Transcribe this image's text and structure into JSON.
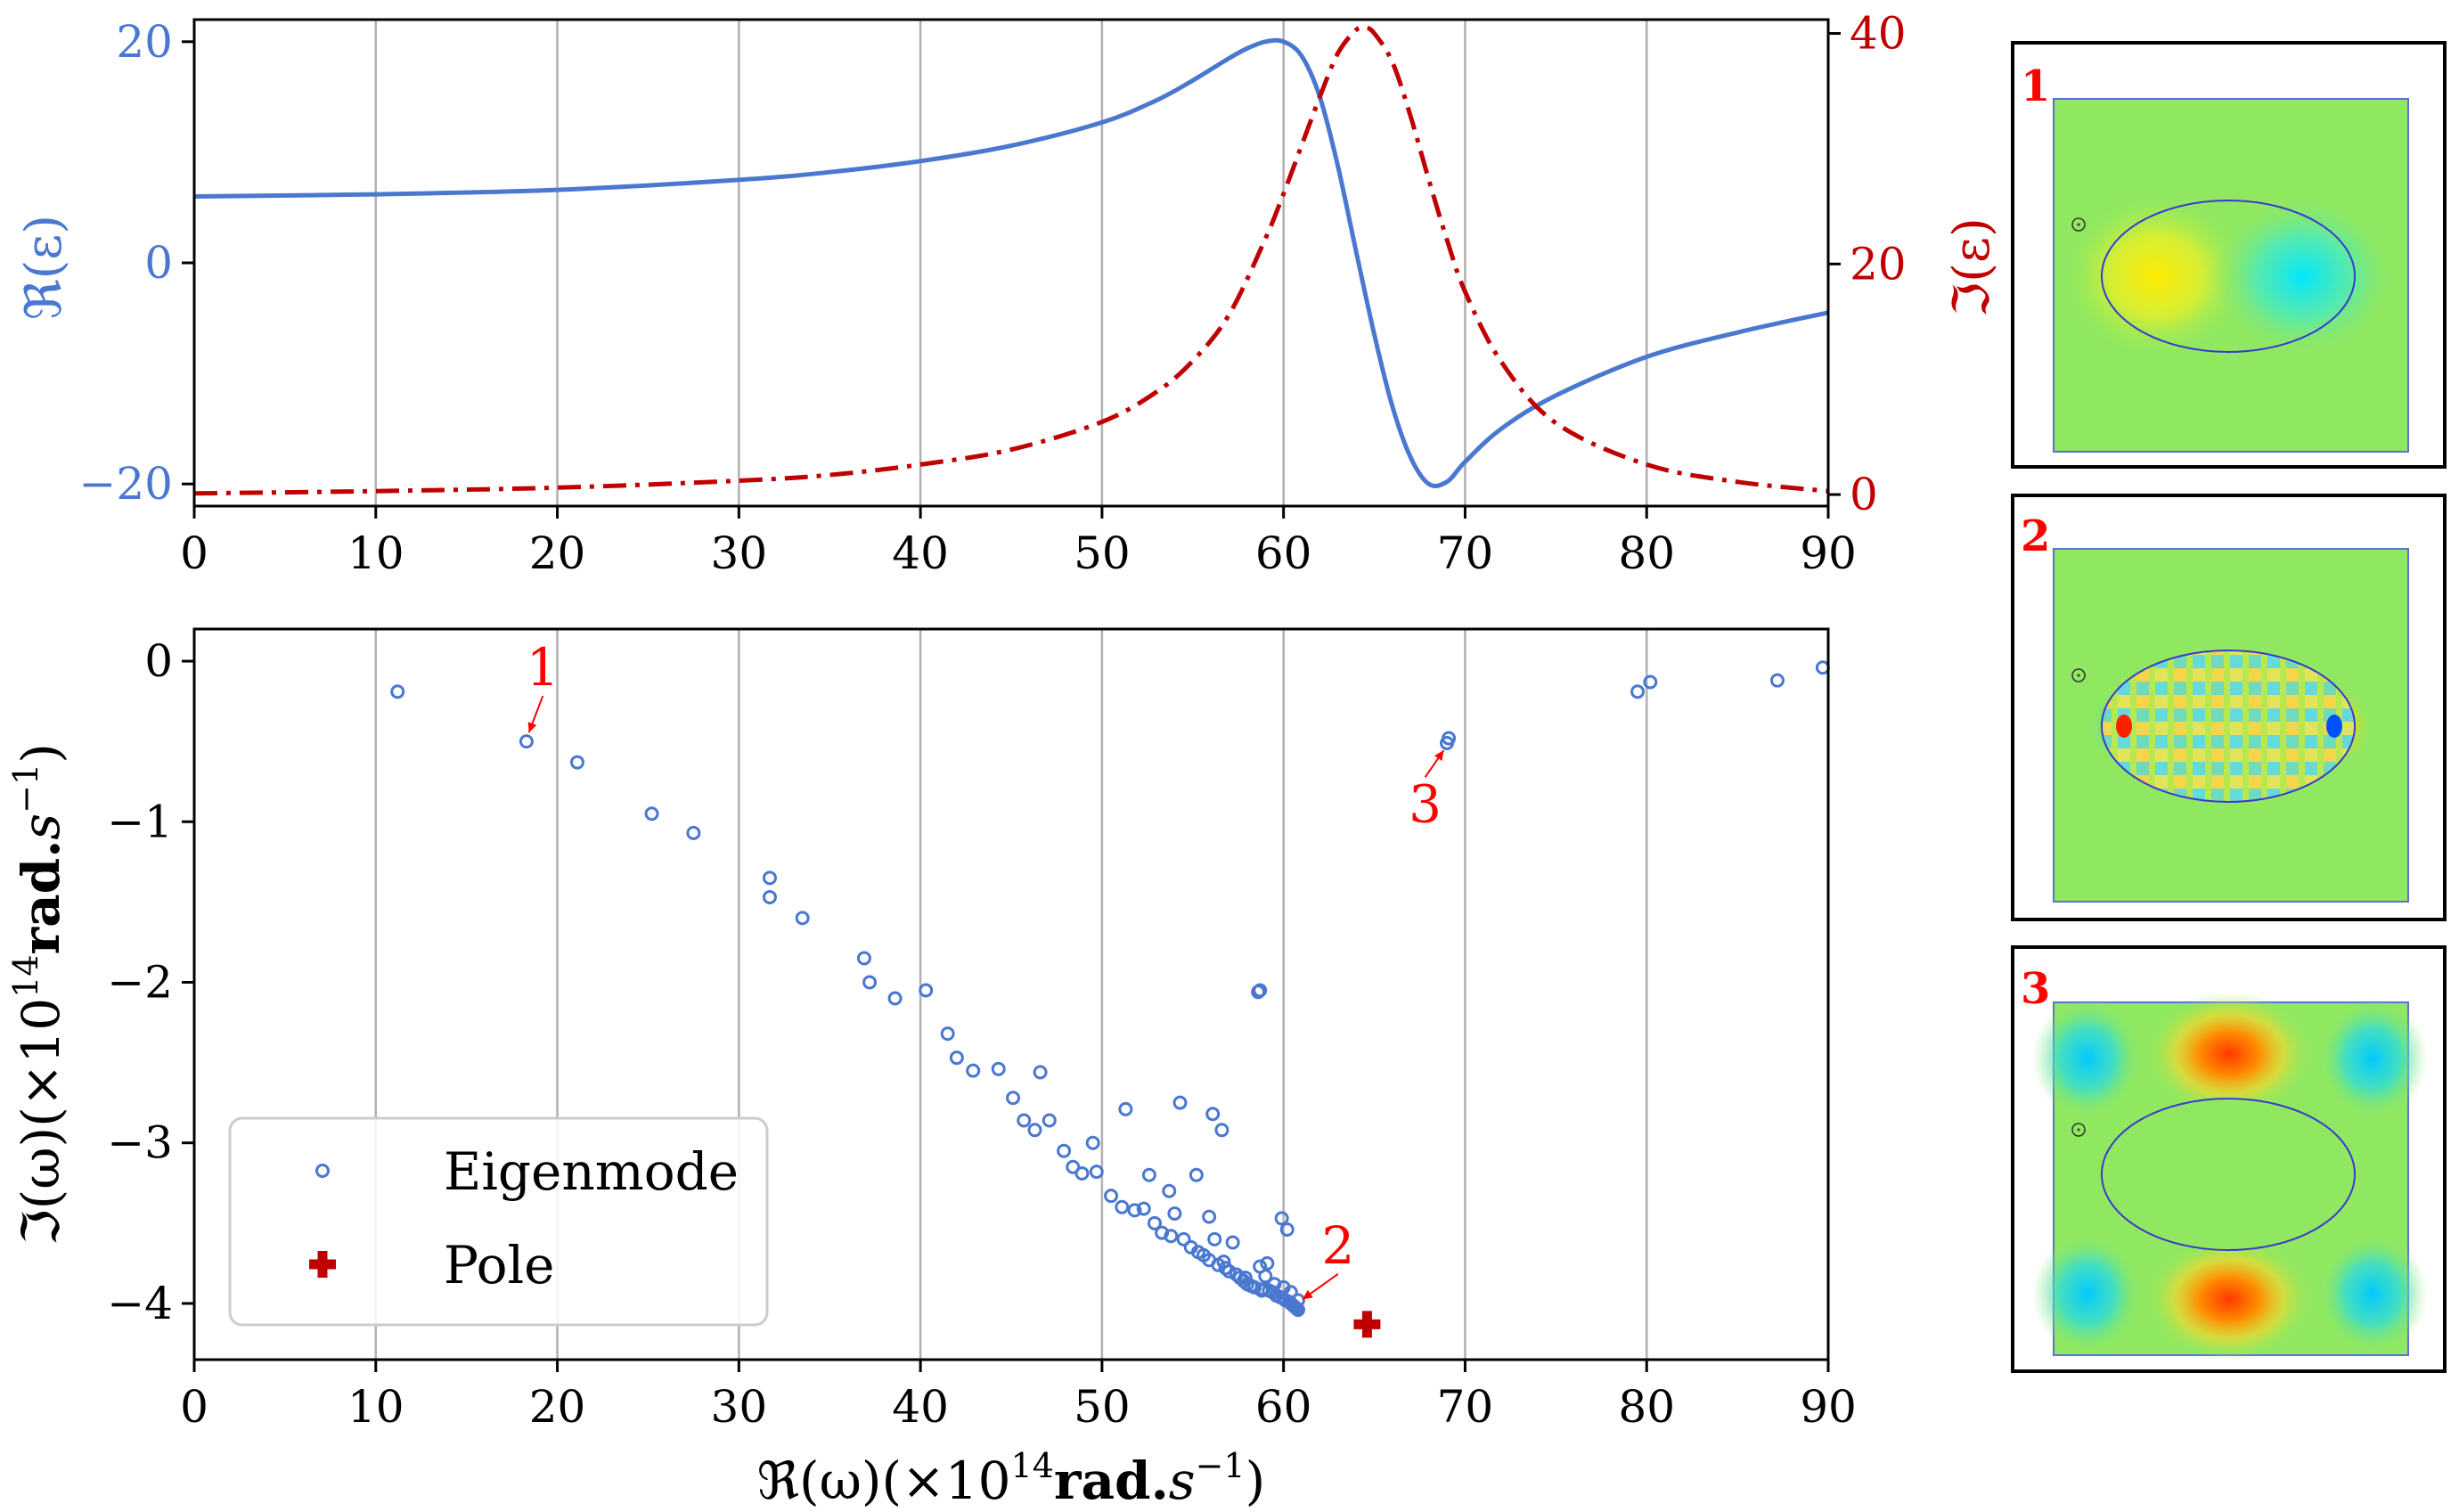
{
  "chart_data": [
    {
      "id": "permittivity",
      "type": "line",
      "x_range": [
        0,
        90
      ],
      "x_ticks": [
        "0",
        "10",
        "20",
        "30",
        "40",
        "50",
        "60",
        "70",
        "80",
        "90"
      ],
      "grid": "vertical",
      "left_axis": {
        "label": "ℜ(ε)",
        "range": [
          -22,
          22
        ],
        "ticks": [
          20,
          0,
          -20
        ],
        "tick_labels": [
          "20",
          "0",
          "−20"
        ],
        "color": "#4a78d0"
      },
      "right_axis": {
        "label": "ℑ(ε)",
        "range": [
          -1,
          41.2
        ],
        "ticks": [
          40,
          20,
          0
        ],
        "tick_labels": [
          "40",
          "20",
          "0"
        ],
        "color": "#c00000"
      },
      "series": [
        {
          "name": "Re(epsilon)",
          "axis": "left",
          "style": "solid",
          "color": "#4a78d0",
          "x": [
            0,
            10,
            20,
            30,
            35,
            40,
            45,
            50,
            53,
            55,
            57,
            58,
            59,
            60,
            61,
            62,
            63,
            64,
            65,
            66,
            67,
            68,
            69,
            70,
            72,
            75,
            80,
            85,
            90
          ],
          "y": [
            6.0,
            6.2,
            6.6,
            7.5,
            8.2,
            9.2,
            10.6,
            12.7,
            14.7,
            16.5,
            18.5,
            19.4,
            20.0,
            20.0,
            18.7,
            15.0,
            8.7,
            1.0,
            -6.5,
            -13.0,
            -17.6,
            -20.0,
            -19.8,
            -18.0,
            -15.0,
            -12.0,
            -8.5,
            -6.3,
            -4.5
          ]
        },
        {
          "name": "Im(epsilon)",
          "axis": "right",
          "style": "dashdot",
          "color": "#c00000",
          "x": [
            0,
            10,
            20,
            30,
            35,
            40,
            45,
            50,
            53,
            55,
            57,
            59,
            60,
            61,
            62,
            63,
            64,
            64.5,
            65,
            66,
            67,
            68,
            69,
            70,
            72,
            75,
            80,
            85,
            90
          ],
          "y": [
            0.1,
            0.3,
            0.6,
            1.2,
            1.7,
            2.6,
            3.9,
            6.3,
            8.9,
            11.6,
            15.6,
            22.2,
            26.1,
            30.3,
            34.5,
            38.3,
            40.3,
            40.5,
            40.0,
            37.5,
            32.8,
            27.3,
            22.1,
            17.6,
            11.5,
            6.2,
            2.6,
            1.1,
            0.3
          ]
        }
      ]
    },
    {
      "id": "spectrum",
      "type": "scatter",
      "xlabel_parts": [
        "ℜ(ω)",
        "(×10",
        "14",
        "rad.",
        "s",
        "−1",
        ")"
      ],
      "ylabel_parts": [
        "ℑ(ω)",
        "(×10",
        "14",
        "rad.",
        "s",
        "−1",
        ")"
      ],
      "x_range": [
        0,
        90
      ],
      "y_range": [
        -4.35,
        0.2
      ],
      "x_ticks": [
        "0",
        "10",
        "20",
        "30",
        "40",
        "50",
        "60",
        "70",
        "80",
        "90"
      ],
      "y_ticks": [
        0,
        -1,
        -2,
        -3,
        -4
      ],
      "y_tick_labels": [
        "0",
        "−1",
        "−2",
        "−3",
        "−4"
      ],
      "grid": "vertical",
      "legend": {
        "position": "lower-left",
        "entries": [
          {
            "label": "Eigenmode",
            "marker": "open-circle",
            "color": "#4a78d0"
          },
          {
            "label": "Pole",
            "marker": "plus",
            "color": "#c00000"
          }
        ]
      },
      "series": [
        {
          "name": "Eigenmode",
          "color": "#4a78d0",
          "points": [
            [
              11.2,
              -0.19
            ],
            [
              18.3,
              -0.5
            ],
            [
              21.1,
              -0.63
            ],
            [
              25.2,
              -0.95
            ],
            [
              27.5,
              -1.07
            ],
            [
              31.7,
              -1.35
            ],
            [
              31.7,
              -1.47
            ],
            [
              33.5,
              -1.6
            ],
            [
              36.9,
              -1.85
            ],
            [
              37.2,
              -2.0
            ],
            [
              38.6,
              -2.1
            ],
            [
              40.3,
              -2.05
            ],
            [
              41.5,
              -2.32
            ],
            [
              42.0,
              -2.47
            ],
            [
              42.9,
              -2.55
            ],
            [
              44.3,
              -2.54
            ],
            [
              45.1,
              -2.72
            ],
            [
              45.7,
              -2.86
            ],
            [
              46.3,
              -2.92
            ],
            [
              46.6,
              -2.56
            ],
            [
              47.1,
              -2.86
            ],
            [
              47.9,
              -3.05
            ],
            [
              48.4,
              -3.15
            ],
            [
              48.9,
              -3.19
            ],
            [
              49.5,
              -3.0
            ],
            [
              49.7,
              -3.18
            ],
            [
              50.5,
              -3.33
            ],
            [
              51.1,
              -3.4
            ],
            [
              51.3,
              -2.79
            ],
            [
              51.8,
              -3.42
            ],
            [
              52.3,
              -3.41
            ],
            [
              52.6,
              -3.2
            ],
            [
              52.9,
              -3.5
            ],
            [
              53.3,
              -3.56
            ],
            [
              53.7,
              -3.3
            ],
            [
              53.8,
              -3.58
            ],
            [
              54.0,
              -3.44
            ],
            [
              54.3,
              -2.75
            ],
            [
              54.5,
              -3.6
            ],
            [
              54.9,
              -3.65
            ],
            [
              55.2,
              -3.2
            ],
            [
              55.3,
              -3.68
            ],
            [
              55.6,
              -3.7
            ],
            [
              55.9,
              -3.46
            ],
            [
              55.9,
              -3.73
            ],
            [
              56.1,
              -2.82
            ],
            [
              56.2,
              -3.6
            ],
            [
              56.4,
              -3.76
            ],
            [
              56.6,
              -2.92
            ],
            [
              56.8,
              -3.78
            ],
            [
              57.0,
              -3.8
            ],
            [
              57.2,
              -3.62
            ],
            [
              57.4,
              -3.82
            ],
            [
              57.6,
              -3.84
            ],
            [
              57.8,
              -3.86
            ],
            [
              58.0,
              -3.88
            ],
            [
              58.2,
              -3.89
            ],
            [
              58.4,
              -3.9
            ],
            [
              58.6,
              -2.06
            ],
            [
              58.7,
              -2.05
            ],
            [
              58.7,
              -3.77
            ],
            [
              58.9,
              -3.91
            ],
            [
              59.1,
              -3.75
            ],
            [
              59.2,
              -3.92
            ],
            [
              59.4,
              -3.93
            ],
            [
              59.6,
              -3.95
            ],
            [
              59.8,
              -3.96
            ],
            [
              59.9,
              -3.47
            ],
            [
              60.0,
              -3.97
            ],
            [
              60.1,
              -3.98
            ],
            [
              60.2,
              -3.54
            ],
            [
              60.3,
              -3.99
            ],
            [
              60.4,
              -4.0
            ],
            [
              60.5,
              -4.01
            ],
            [
              60.6,
              -4.02
            ],
            [
              60.7,
              -4.03
            ],
            [
              60.8,
              -4.04
            ],
            [
              58.8,
              -3.92
            ],
            [
              59.5,
              -3.88
            ],
            [
              60.0,
              -3.9
            ],
            [
              60.4,
              -3.93
            ],
            [
              60.8,
              -3.98
            ],
            [
              59.0,
              -3.83
            ],
            [
              57.9,
              -3.84
            ],
            [
              56.7,
              -3.74
            ],
            [
              69.0,
              -0.51
            ],
            [
              69.1,
              -0.48
            ],
            [
              79.5,
              -0.19
            ],
            [
              80.2,
              -0.13
            ],
            [
              87.2,
              -0.12
            ],
            [
              89.7,
              -0.04
            ]
          ]
        },
        {
          "name": "Pole",
          "color": "#c00000",
          "points": [
            [
              64.6,
              -4.13
            ]
          ]
        }
      ],
      "annotations": [
        {
          "text": "1",
          "xy": [
            18.3,
            -0.5
          ],
          "xytext": [
            19.2,
            -0.15
          ]
        },
        {
          "text": "2",
          "xy": [
            60.7,
            -4.03
          ],
          "xytext": [
            63.0,
            -3.75
          ]
        },
        {
          "text": "3",
          "xy": [
            69.0,
            -0.5
          ],
          "xytext": [
            67.8,
            -1.0
          ]
        }
      ]
    }
  ],
  "insets": [
    {
      "label": "1",
      "description": "dipole mode field map"
    },
    {
      "label": "2",
      "description": "high-order surface mode field map"
    },
    {
      "label": "3",
      "description": "background mode field map"
    }
  ],
  "colors": {
    "blue": "#4a78d0",
    "red": "#c00000",
    "annotation_red": "#ff0000",
    "grid": "#b0b0b0",
    "field_background": "#90e860"
  }
}
